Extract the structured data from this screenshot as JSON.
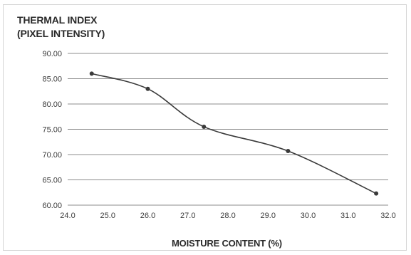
{
  "chart_data": {
    "type": "line",
    "ylabel_lines": [
      "THERMAL INDEX",
      "(PIXEL INTENSITY)"
    ],
    "xlabel": "MOISTURE CONTENT (%)",
    "xlim": [
      24.0,
      32.0
    ],
    "ylim": [
      60.0,
      90.0
    ],
    "x_ticks": [
      "24.0",
      "25.0",
      "26.0",
      "27.0",
      "28.0",
      "29.0",
      "30.0",
      "31.0",
      "32.0"
    ],
    "y_ticks": [
      "90.00",
      "85.00",
      "80.00",
      "75.00",
      "70.00",
      "65.00",
      "60.00"
    ],
    "grid": "horizontal",
    "series": [
      {
        "color": "#3a3a3a",
        "points": [
          {
            "x": 24.6,
            "y": 86.0
          },
          {
            "x": 26.0,
            "y": 83.0
          },
          {
            "x": 27.4,
            "y": 75.5
          },
          {
            "x": 29.5,
            "y": 70.7
          },
          {
            "x": 31.7,
            "y": 62.3
          }
        ]
      }
    ]
  }
}
